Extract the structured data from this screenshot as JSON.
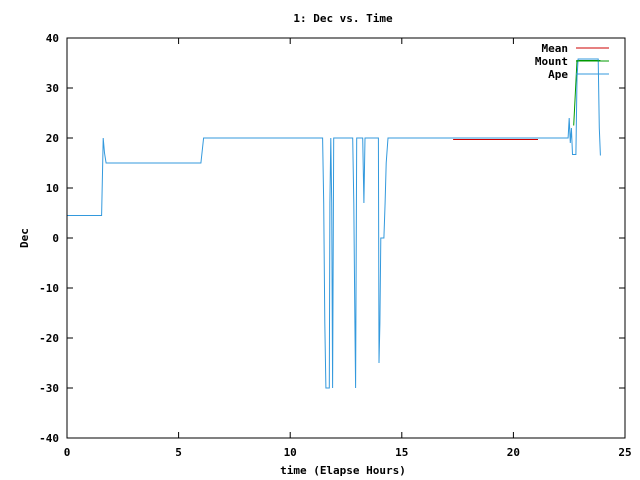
{
  "chart_data": {
    "type": "line",
    "title": "1: Dec vs. Time",
    "xlabel": "time (Elapse Hours)",
    "ylabel": "Dec",
    "xlim": [
      0,
      25
    ],
    "ylim": [
      -40,
      40
    ],
    "xticks": [
      0,
      5,
      10,
      15,
      20,
      25
    ],
    "yticks": [
      -40,
      -30,
      -20,
      -10,
      0,
      10,
      20,
      30,
      40
    ],
    "grid": false,
    "legend_position": "top-right",
    "series": [
      {
        "name": "Mean",
        "color": "#cc0000",
        "points": [
          [
            17.3,
            19.7
          ],
          [
            21.1,
            19.7
          ]
        ]
      },
      {
        "name": "Mount",
        "color": "#009900",
        "points": [
          [
            22.7,
            22.5
          ],
          [
            22.85,
            35.5
          ],
          [
            23.85,
            35.5
          ],
          [
            23.9,
            35.5
          ]
        ]
      },
      {
        "name": "Ape",
        "color": "#3399dd",
        "points": [
          [
            0.0,
            4.5
          ],
          [
            1.55,
            4.5
          ],
          [
            1.6,
            15.0
          ],
          [
            1.62,
            20.0
          ],
          [
            1.68,
            17.0
          ],
          [
            1.75,
            15.0
          ],
          [
            6.0,
            15.0
          ],
          [
            6.12,
            20.0
          ],
          [
            11.45,
            20.0
          ],
          [
            11.5,
            7.0
          ],
          [
            11.55,
            -17.0
          ],
          [
            11.6,
            -30.0
          ],
          [
            11.75,
            -30.0
          ],
          [
            11.78,
            7.0
          ],
          [
            11.82,
            20.0
          ],
          [
            11.86,
            7.0
          ],
          [
            11.9,
            -30.0
          ],
          [
            11.95,
            20.0
          ],
          [
            12.8,
            20.0
          ],
          [
            12.85,
            7.0
          ],
          [
            12.9,
            -17.0
          ],
          [
            12.93,
            -30.0
          ],
          [
            12.98,
            20.0
          ],
          [
            13.25,
            20.0
          ],
          [
            13.3,
            7.0
          ],
          [
            13.35,
            20.0
          ],
          [
            13.95,
            20.0
          ],
          [
            13.98,
            -25.0
          ],
          [
            14.02,
            -17.0
          ],
          [
            14.06,
            0.0
          ],
          [
            14.2,
            0.0
          ],
          [
            14.25,
            7.0
          ],
          [
            14.3,
            15.0
          ],
          [
            14.38,
            20.0
          ],
          [
            22.45,
            20.0
          ],
          [
            22.5,
            24.0
          ],
          [
            22.55,
            19.0
          ],
          [
            22.6,
            22.0
          ],
          [
            22.65,
            16.7
          ],
          [
            22.8,
            16.7
          ],
          [
            22.85,
            32.0
          ],
          [
            22.9,
            35.8
          ],
          [
            23.8,
            35.8
          ],
          [
            23.85,
            22.0
          ],
          [
            23.9,
            16.5
          ]
        ]
      }
    ]
  }
}
